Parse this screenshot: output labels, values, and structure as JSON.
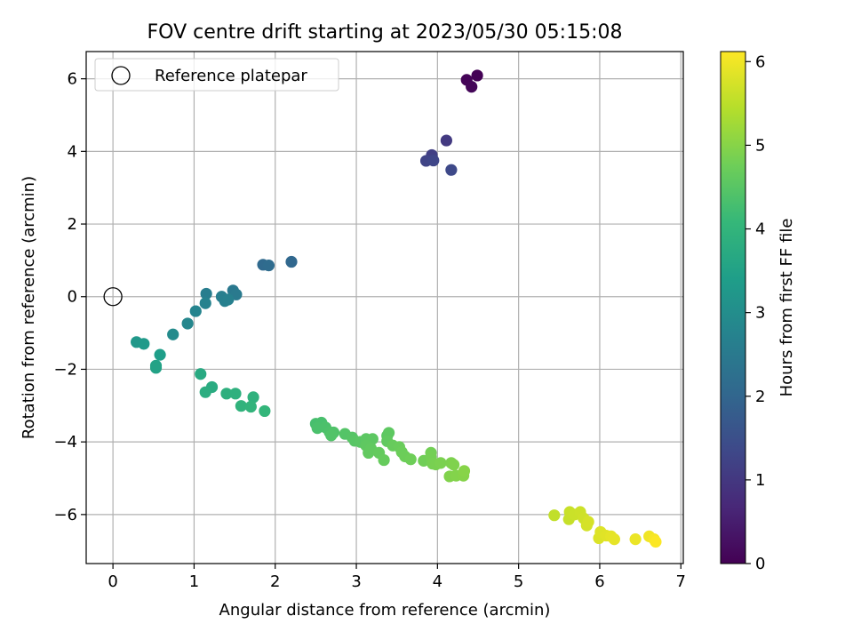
{
  "chart_data": {
    "type": "scatter",
    "title": "FOV centre drift starting at 2023/05/30 05:15:08",
    "xlabel": "Angular distance from reference (arcmin)",
    "ylabel": "Rotation from reference (arcmin)",
    "xlim": [
      -0.33,
      7.03
    ],
    "ylim": [
      -7.35,
      6.75
    ],
    "xticks": [
      0,
      1,
      2,
      3,
      4,
      5,
      6,
      7
    ],
    "yticks": [
      -6,
      -4,
      -2,
      0,
      2,
      4,
      6
    ],
    "grid": true,
    "legend": {
      "position": "top-left",
      "entries": [
        "Reference platepar"
      ]
    },
    "reference_point": {
      "x": 0,
      "y": 0,
      "marker": "open-circle"
    },
    "colorbar": {
      "label": "Hours from first FF file",
      "colormap": "viridis",
      "range": [
        0,
        6.12
      ],
      "ticks": [
        0,
        1,
        2,
        3,
        4,
        5,
        6
      ]
    },
    "colormap_stops": [
      "#440154",
      "#482878",
      "#3e4989",
      "#31688e",
      "#26828e",
      "#1f9e89",
      "#35b779",
      "#6ece58",
      "#b5de2b",
      "#fde725"
    ],
    "series": [
      {
        "points": [
          {
            "x": 4.36,
            "y": 5.97,
            "c": 0.05
          },
          {
            "x": 4.42,
            "y": 5.78,
            "c": 0.08
          },
          {
            "x": 4.49,
            "y": 6.09,
            "c": 0.02
          },
          {
            "x": 4.11,
            "y": 4.3,
            "c": 1.05
          },
          {
            "x": 3.93,
            "y": 3.9,
            "c": 1.15
          },
          {
            "x": 3.86,
            "y": 3.74,
            "c": 1.25
          },
          {
            "x": 3.95,
            "y": 3.75,
            "c": 1.3
          },
          {
            "x": 4.17,
            "y": 3.49,
            "c": 1.35
          },
          {
            "x": 2.2,
            "y": 0.96,
            "c": 2.05
          },
          {
            "x": 1.85,
            "y": 0.88,
            "c": 2.1
          },
          {
            "x": 1.92,
            "y": 0.86,
            "c": 2.15
          },
          {
            "x": 1.48,
            "y": 0.17,
            "c": 2.45
          },
          {
            "x": 1.52,
            "y": 0.06,
            "c": 2.5
          },
          {
            "x": 1.15,
            "y": 0.08,
            "c": 2.6
          },
          {
            "x": 1.34,
            "y": 0.0,
            "c": 2.62
          },
          {
            "x": 1.38,
            "y": -0.12,
            "c": 2.65
          },
          {
            "x": 1.42,
            "y": -0.08,
            "c": 2.68
          },
          {
            "x": 1.14,
            "y": -0.18,
            "c": 2.72
          },
          {
            "x": 1.02,
            "y": -0.4,
            "c": 2.78
          },
          {
            "x": 0.92,
            "y": -0.74,
            "c": 2.85
          },
          {
            "x": 0.74,
            "y": -1.04,
            "c": 2.95
          },
          {
            "x": 0.29,
            "y": -1.25,
            "c": 3.25
          },
          {
            "x": 0.38,
            "y": -1.3,
            "c": 3.3
          },
          {
            "x": 0.58,
            "y": -1.6,
            "c": 3.4
          },
          {
            "x": 0.53,
            "y": -1.9,
            "c": 3.5
          },
          {
            "x": 0.53,
            "y": -1.96,
            "c": 3.52
          },
          {
            "x": 1.08,
            "y": -2.13,
            "c": 3.7
          },
          {
            "x": 1.22,
            "y": -2.49,
            "c": 3.75
          },
          {
            "x": 1.14,
            "y": -2.63,
            "c": 3.8
          },
          {
            "x": 1.4,
            "y": -2.67,
            "c": 3.85
          },
          {
            "x": 1.51,
            "y": -2.67,
            "c": 3.88
          },
          {
            "x": 1.73,
            "y": -2.77,
            "c": 3.92
          },
          {
            "x": 1.58,
            "y": -3.01,
            "c": 3.95
          },
          {
            "x": 1.7,
            "y": -3.03,
            "c": 3.98
          },
          {
            "x": 1.87,
            "y": -3.15,
            "c": 4.02
          },
          {
            "x": 2.5,
            "y": -3.5,
            "c": 4.3
          },
          {
            "x": 2.57,
            "y": -3.47,
            "c": 4.32
          },
          {
            "x": 2.52,
            "y": -3.62,
            "c": 4.34
          },
          {
            "x": 2.62,
            "y": -3.6,
            "c": 4.36
          },
          {
            "x": 2.67,
            "y": -3.73,
            "c": 4.38
          },
          {
            "x": 2.72,
            "y": -3.74,
            "c": 4.4
          },
          {
            "x": 2.69,
            "y": -3.82,
            "c": 4.42
          },
          {
            "x": 2.86,
            "y": -3.78,
            "c": 4.45
          },
          {
            "x": 2.95,
            "y": -3.88,
            "c": 4.47
          },
          {
            "x": 2.98,
            "y": -3.97,
            "c": 4.5
          },
          {
            "x": 3.05,
            "y": -4.0,
            "c": 4.52
          },
          {
            "x": 3.12,
            "y": -3.92,
            "c": 4.54
          },
          {
            "x": 3.2,
            "y": -3.92,
            "c": 4.56
          },
          {
            "x": 3.12,
            "y": -4.1,
            "c": 4.58
          },
          {
            "x": 3.18,
            "y": -4.18,
            "c": 4.6
          },
          {
            "x": 3.15,
            "y": -4.3,
            "c": 4.62
          },
          {
            "x": 3.28,
            "y": -4.3,
            "c": 4.64
          },
          {
            "x": 3.34,
            "y": -4.5,
            "c": 4.66
          },
          {
            "x": 3.38,
            "y": -3.83,
            "c": 4.55
          },
          {
            "x": 3.4,
            "y": -3.75,
            "c": 4.57
          },
          {
            "x": 3.38,
            "y": -3.98,
            "c": 4.6
          },
          {
            "x": 3.45,
            "y": -4.1,
            "c": 4.68
          },
          {
            "x": 3.53,
            "y": -4.14,
            "c": 4.7
          },
          {
            "x": 3.56,
            "y": -4.28,
            "c": 4.72
          },
          {
            "x": 3.6,
            "y": -4.4,
            "c": 4.74
          },
          {
            "x": 3.67,
            "y": -4.48,
            "c": 4.76
          },
          {
            "x": 3.83,
            "y": -4.52,
            "c": 4.78
          },
          {
            "x": 3.92,
            "y": -4.3,
            "c": 4.8
          },
          {
            "x": 3.92,
            "y": -4.42,
            "c": 4.82
          },
          {
            "x": 3.94,
            "y": -4.6,
            "c": 4.84
          },
          {
            "x": 3.98,
            "y": -4.62,
            "c": 4.86
          },
          {
            "x": 4.04,
            "y": -4.58,
            "c": 4.88
          },
          {
            "x": 4.17,
            "y": -4.58,
            "c": 4.9
          },
          {
            "x": 4.2,
            "y": -4.63,
            "c": 4.92
          },
          {
            "x": 4.15,
            "y": -4.95,
            "c": 4.94
          },
          {
            "x": 4.23,
            "y": -4.93,
            "c": 4.96
          },
          {
            "x": 4.32,
            "y": -4.93,
            "c": 4.98
          },
          {
            "x": 4.33,
            "y": -4.8,
            "c": 5.0
          },
          {
            "x": 5.44,
            "y": -6.02,
            "c": 5.55
          },
          {
            "x": 5.62,
            "y": -6.13,
            "c": 5.6
          },
          {
            "x": 5.63,
            "y": -5.93,
            "c": 5.62
          },
          {
            "x": 5.69,
            "y": -6.0,
            "c": 5.64
          },
          {
            "x": 5.76,
            "y": -5.93,
            "c": 5.66
          },
          {
            "x": 5.8,
            "y": -6.1,
            "c": 5.68
          },
          {
            "x": 5.84,
            "y": -6.3,
            "c": 5.72
          },
          {
            "x": 5.86,
            "y": -6.2,
            "c": 5.74
          },
          {
            "x": 5.99,
            "y": -6.65,
            "c": 5.8
          },
          {
            "x": 6.01,
            "y": -6.48,
            "c": 5.82
          },
          {
            "x": 6.08,
            "y": -6.58,
            "c": 5.85
          },
          {
            "x": 6.14,
            "y": -6.6,
            "c": 5.88
          },
          {
            "x": 6.18,
            "y": -6.68,
            "c": 5.9
          },
          {
            "x": 6.44,
            "y": -6.68,
            "c": 5.95
          },
          {
            "x": 6.61,
            "y": -6.6,
            "c": 6.0
          },
          {
            "x": 6.67,
            "y": -6.68,
            "c": 6.05
          },
          {
            "x": 6.69,
            "y": -6.75,
            "c": 6.1
          }
        ]
      }
    ]
  }
}
